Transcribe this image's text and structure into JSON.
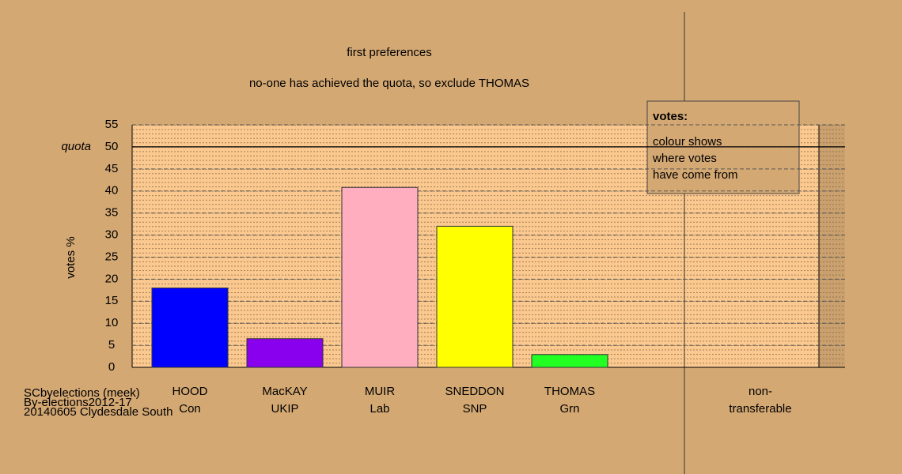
{
  "chart_data": {
    "type": "bar",
    "title": "first preferences",
    "subtitle": "no-one has achieved the quota, so exclude THOMAS",
    "y_label": "votes %",
    "categories": [
      [
        "HOOD",
        "Con"
      ],
      [
        "MacKAY",
        "UKIP"
      ],
      [
        "MUIR",
        "Lab"
      ],
      [
        "SNEDDON",
        "SNP"
      ],
      [
        "THOMAS",
        "Grn"
      ],
      [
        "non-",
        "transferable"
      ]
    ],
    "values": [
      18,
      6.5,
      40.8,
      32,
      2.9,
      null
    ],
    "colors": [
      "#0000ff",
      "#8800ee",
      "#ffaec0",
      "#ffff00",
      "#22ff22",
      "#000000"
    ],
    "ylim": [
      0,
      55
    ],
    "yticks": [
      0,
      5,
      10,
      15,
      20,
      25,
      30,
      35,
      40,
      45,
      50,
      55
    ],
    "quota": {
      "label": "quota",
      "value": 50
    },
    "grid": true,
    "legend": {
      "title": "votes:",
      "lines": [
        "colour shows",
        "where votes",
        "have come from"
      ]
    },
    "footer": [
      "SCbyelections (meek)",
      "By-elections2012-17",
      "20140605 Clydesdale South"
    ]
  }
}
